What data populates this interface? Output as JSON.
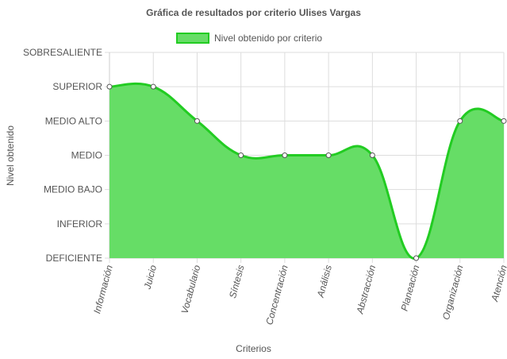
{
  "chart_data": {
    "type": "area",
    "title": "Gráfica de resultados por criterio Ulises Vargas",
    "xlabel": "Criterios",
    "ylabel": "Nivel obtenido",
    "categories": [
      "Información",
      "Juicio",
      "Vocabulario",
      "Síntesis",
      "Concentración",
      "Análisis",
      "Abstracción",
      "Planeación",
      "Organización",
      "Atención"
    ],
    "y_levels": [
      "DEFICIENTE",
      "INFERIOR",
      "MEDIO BAJO",
      "MEDIO",
      "MEDIO ALTO",
      "SUPERIOR",
      "SOBRESALIENTE"
    ],
    "series": [
      {
        "name": "Nivel obtenido por criterio",
        "values": [
          5,
          5,
          4,
          3,
          3,
          3,
          3,
          0,
          4,
          4
        ]
      }
    ],
    "ylim": [
      0,
      6
    ],
    "grid": true,
    "legend": "top-center",
    "colors": {
      "fill": "#66dd66",
      "line": "#22cc22",
      "point_fill": "#ffffff",
      "point_stroke": "#555555",
      "grid": "#dddddd"
    }
  }
}
